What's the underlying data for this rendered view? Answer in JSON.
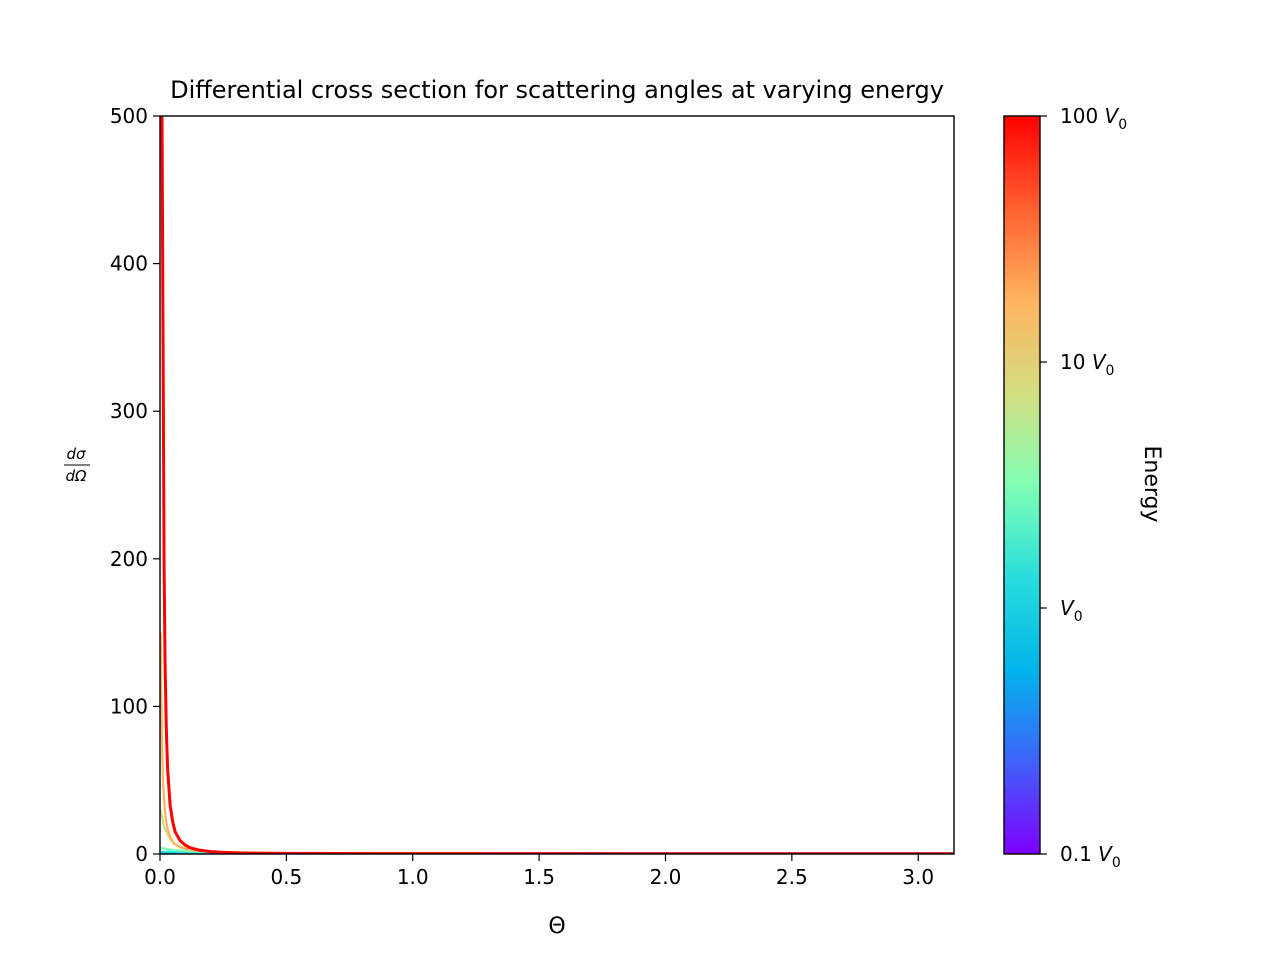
{
  "chart_data": {
    "type": "line",
    "title": "Differential cross section for scattering angles at varying energy",
    "xlabel": "Θ",
    "ylabel": {
      "numerator": "dσ",
      "denominator": "dΩ"
    },
    "xlim": [
      0,
      3.1416
    ],
    "ylim": [
      0,
      500
    ],
    "x_ticks": [
      0.0,
      0.5,
      1.0,
      1.5,
      2.0,
      2.5,
      3.0
    ],
    "x_tick_labels": [
      "0.0",
      "0.5",
      "1.0",
      "1.5",
      "2.0",
      "2.5",
      "3.0"
    ],
    "y_ticks": [
      0,
      100,
      200,
      300,
      400,
      500
    ],
    "y_tick_labels": [
      "0",
      "100",
      "200",
      "300",
      "400",
      "500"
    ],
    "grid": false,
    "legend": "none",
    "x": [
      0.003,
      0.005,
      0.008,
      0.012,
      0.016,
      0.02,
      0.025,
      0.03,
      0.04,
      0.05,
      0.06,
      0.08,
      0.1,
      0.12,
      0.15,
      0.2,
      0.25,
      0.3,
      0.4,
      0.5,
      0.7,
      1.0,
      1.5,
      2.0,
      2.5,
      3.1416
    ],
    "series": [
      {
        "color": "#7f00ff",
        "values": [
          0.02,
          0.02,
          0.02,
          0.02,
          0.02,
          0.02,
          0.02,
          0.02,
          0.02,
          0.02,
          0.02,
          0.02,
          0.02,
          0.02,
          0.02,
          0.02,
          0.02,
          0.02,
          0.02,
          0.02,
          0.02,
          0.02,
          0.02,
          0.02,
          0.02,
          0.02
        ]
      },
      {
        "color": "#3f62f9",
        "values": [
          0.1,
          0.1,
          0.1,
          0.1,
          0.1,
          0.1,
          0.1,
          0.1,
          0.1,
          0.1,
          0.1,
          0.1,
          0.1,
          0.1,
          0.1,
          0.1,
          0.1,
          0.1,
          0.1,
          0.1,
          0.1,
          0.1,
          0.1,
          0.1,
          0.1,
          0.1
        ]
      },
      {
        "color": "#00b5eb",
        "values": [
          0.5,
          0.5,
          0.5,
          0.5,
          0.5,
          0.5,
          0.5,
          0.5,
          0.5,
          0.5,
          0.5,
          0.5,
          0.5,
          0.5,
          0.5,
          0.5,
          0.5,
          0.5,
          0.5,
          0.5,
          0.5,
          0.5,
          0.5,
          0.5,
          0.5,
          0.5
        ]
      },
      {
        "color": "#2adddd",
        "values": [
          1.5,
          1.5,
          1.5,
          1.5,
          1.5,
          1.5,
          1.5,
          1.5,
          1.5,
          1.5,
          1.5,
          1.4,
          1.3,
          1.2,
          1.1,
          1.0,
          0.9,
          0.8,
          0.7,
          0.6,
          0.5,
          0.4,
          0.3,
          0.25,
          0.2,
          0.2
        ]
      },
      {
        "color": "#80ffb4",
        "values": [
          4,
          4,
          4,
          4,
          3.8,
          3.6,
          3.4,
          3.2,
          3,
          2.8,
          2.6,
          2.4,
          2.2,
          2,
          1.8,
          1.5,
          1.2,
          1,
          0.8,
          0.6,
          0.5,
          0.4,
          0.3,
          0.25,
          0.2,
          0.2
        ]
      },
      {
        "color": "#d4dd80",
        "values": [
          30,
          28,
          25,
          22,
          19,
          17,
          15,
          13,
          10,
          8,
          6.5,
          5,
          4,
          3.3,
          2.6,
          1.8,
          1.4,
          1.1,
          0.8,
          0.6,
          0.45,
          0.35,
          0.28,
          0.24,
          0.21,
          0.2
        ]
      },
      {
        "color": "#ffb360",
        "values": [
          150,
          110,
          75,
          50,
          37,
          29,
          22,
          17,
          12,
          8.5,
          6.5,
          4.5,
          3.5,
          2.8,
          2.2,
          1.6,
          1.2,
          1,
          0.75,
          0.6,
          0.45,
          0.35,
          0.28,
          0.24,
          0.21,
          0.2
        ]
      },
      {
        "color": "#ff0000",
        "values": [
          500,
          500,
          500,
          350,
          200,
          130,
          85,
          58,
          33,
          22,
          15,
          9,
          6,
          4.2,
          2.8,
          1.6,
          1.1,
          0.8,
          0.5,
          0.4,
          0.3,
          0.25,
          0.22,
          0.21,
          0.2,
          0.2
        ]
      }
    ],
    "colorbar": {
      "label": "Energy",
      "scale": "log",
      "range": [
        0.1,
        100
      ],
      "ticks": [
        {
          "value": 0.1,
          "number": "0.1 ",
          "symbol": "V",
          "sub": "0"
        },
        {
          "value": 1,
          "number": "",
          "symbol": "V",
          "sub": "0"
        },
        {
          "value": 10,
          "number": "10 ",
          "symbol": "V",
          "sub": "0"
        },
        {
          "value": 100,
          "number": "100 ",
          "symbol": "V",
          "sub": "0"
        }
      ],
      "colormap": [
        "#7f00ff",
        "#3f62f9",
        "#00b5eb",
        "#2adddd",
        "#80ffb4",
        "#d4dd80",
        "#ffb360",
        "#ff6030",
        "#ff0000"
      ]
    }
  }
}
